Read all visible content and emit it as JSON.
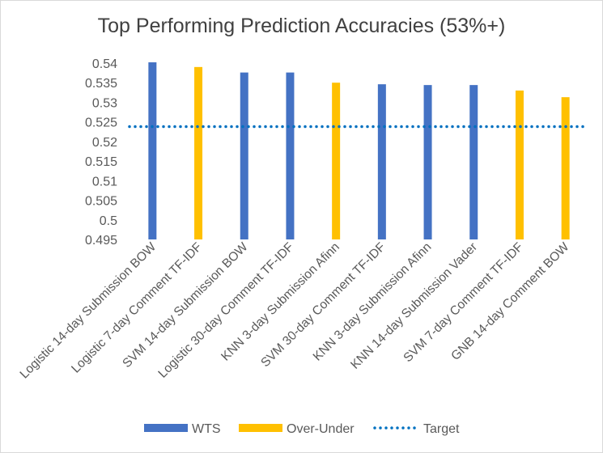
{
  "chart_data": {
    "type": "bar",
    "title": "Top Performing Prediction Accuracies (53%+)",
    "xlabel": "",
    "ylabel": "",
    "ylim": [
      0.495,
      0.54
    ],
    "y_ticks": [
      "0.54",
      "0.535",
      "0.53",
      "0.525",
      "0.52",
      "0.515",
      "0.51",
      "0.505",
      "0.5",
      "0.495"
    ],
    "grid": false,
    "legend_position": "bottom",
    "categories": [
      "Logistic 14-day Submission BOW",
      "Logistic 7-day Comment TF-IDF",
      "SVM 14-day Submission BOW",
      "Logistic 30-day Comment TF-IDF",
      "KNN 3-day Submission Afinn",
      "SVM 30-day Comment TF-IDF",
      "KNN 3-day Submission Afinn",
      "KNN 14-day Submission Vader",
      "SVM 7-day Comment TF-IDF",
      "GNB 14-day Comment BOW"
    ],
    "series": [
      {
        "name": "WTS",
        "color": "#4472C4",
        "values": [
          0.5402,
          null,
          0.5376,
          0.5376,
          null,
          0.5346,
          0.5344,
          0.5344,
          null,
          null
        ]
      },
      {
        "name": "Over-Under",
        "color": "#FFC000",
        "values": [
          null,
          0.539,
          null,
          null,
          0.535,
          null,
          null,
          null,
          0.533,
          0.5313
        ]
      },
      {
        "name": "Target",
        "color": "#0070C0",
        "style": "dotted line",
        "value": 0.5238
      }
    ]
  }
}
